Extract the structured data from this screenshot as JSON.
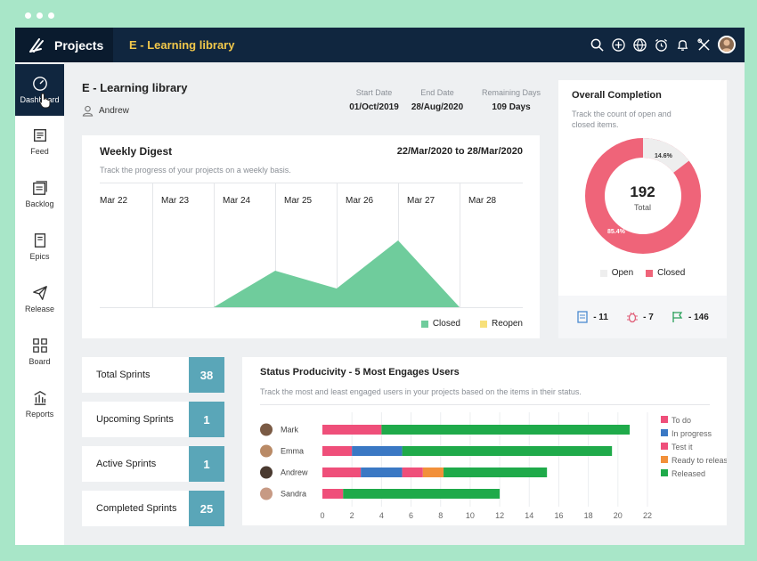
{
  "app": {
    "brand": "Projects",
    "breadcrumb": "E - Learning library"
  },
  "sidebar": {
    "items": [
      {
        "label": "Dashboard",
        "icon": "dashboard-icon"
      },
      {
        "label": "Feed",
        "icon": "feed-icon"
      },
      {
        "label": "Backlog",
        "icon": "backlog-icon"
      },
      {
        "label": "Epics",
        "icon": "epics-icon"
      },
      {
        "label": "Release",
        "icon": "release-icon"
      },
      {
        "label": "Board",
        "icon": "board-icon"
      },
      {
        "label": "Reports",
        "icon": "reports-icon"
      }
    ]
  },
  "project": {
    "name": "E - Learning library",
    "owner": "Andrew",
    "start_label": "Start Date",
    "start_value": "01/Oct/2019",
    "end_label": "End Date",
    "end_value": "28/Aug/2020",
    "remaining_label": "Remaining Days",
    "remaining_value": "109 Days"
  },
  "weekly": {
    "title": "Weekly Digest",
    "range": "22/Mar/2020 to 28/Mar/2020",
    "desc": "Track the progress of your projects on a weekly basis.",
    "days": [
      "Mar 22",
      "Mar 23",
      "Mar 24",
      "Mar 25",
      "Mar 26",
      "Mar 27",
      "Mar 28"
    ],
    "legend_closed": "Closed",
    "legend_reopen": "Reopen",
    "closed_color": "#6fcc9c",
    "reopen_color": "#f7e07a"
  },
  "completion": {
    "title": "Overall Completion",
    "desc": "Track the count of open and closed items.",
    "total": "192",
    "total_label": "Total",
    "open_pct": "14.6%",
    "closed_pct": "85.4%",
    "open_fraction": 0.146,
    "legend_open": "Open",
    "legend_closed": "Closed",
    "open_color": "#eeeeee",
    "closed_color": "#ef6479",
    "stats": [
      {
        "icon": "document-icon",
        "value": "- 11"
      },
      {
        "icon": "bug-icon",
        "value": "- 7"
      },
      {
        "icon": "flag-icon",
        "value": "- 146"
      }
    ]
  },
  "sprints": [
    {
      "label": "Total Sprints",
      "count": "38"
    },
    {
      "label": "Upcoming Sprints",
      "count": "1"
    },
    {
      "label": "Active Sprints",
      "count": "1"
    },
    {
      "label": "Completed Sprints",
      "count": "25"
    }
  ],
  "status": {
    "title": "Status Producivity - 5 Most Engages Users",
    "desc": "Track the most and least engaged users in your projects based on the items in their status."
  },
  "chart_data": {
    "type": "bar",
    "orientation": "horizontal",
    "stacked": true,
    "categories": [
      "Mark",
      "Emma",
      "Andrew",
      "Sandra"
    ],
    "series": [
      {
        "name": "To do",
        "color": "#ef4f7a",
        "values": [
          4,
          2,
          2.6,
          1.4
        ]
      },
      {
        "name": "In progress",
        "color": "#3a78c4",
        "values": [
          0,
          3.4,
          2.8,
          0
        ]
      },
      {
        "name": "Test it",
        "color": "#ef4f7a",
        "values": [
          0,
          0,
          1.4,
          0
        ]
      },
      {
        "name": "Ready to release",
        "color": "#f2903a",
        "values": [
          0,
          0,
          1.4,
          0
        ]
      },
      {
        "name": "Released",
        "color": "#1faa4a",
        "values": [
          16.8,
          14.2,
          7,
          10.6
        ]
      }
    ],
    "xticks": [
      0,
      2,
      4,
      6,
      8,
      10,
      12,
      14,
      16,
      18,
      20,
      22
    ],
    "xlim": [
      0,
      22
    ]
  }
}
